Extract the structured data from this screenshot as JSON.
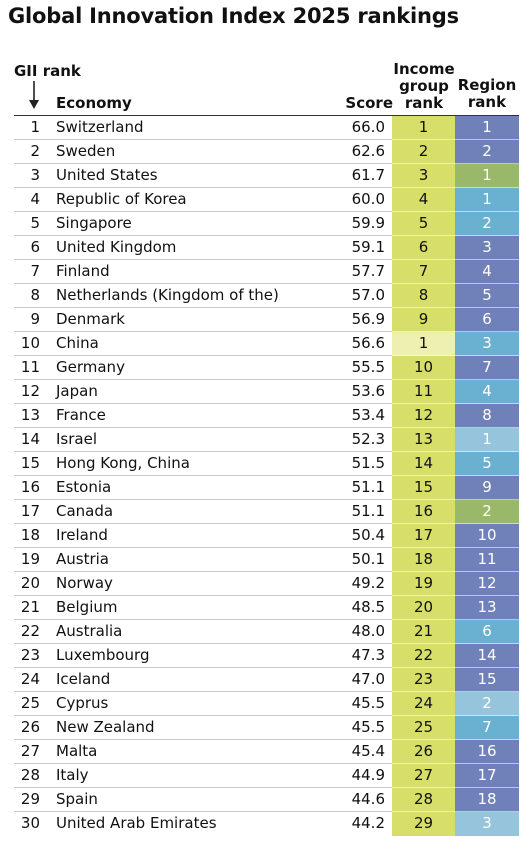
{
  "title": "Global Innovation Index 2025 rankings",
  "headers": {
    "gii_rank": "GII rank",
    "economy": "Economy",
    "score": "Score",
    "income_line1": "Income",
    "income_line2": "group",
    "income_line3": "rank",
    "region_line1": "Region",
    "region_line2": "rank"
  },
  "colors": {
    "income_high": "#d8de6a",
    "income_upper_middle": "#eef0b2",
    "region_europe": "#7080b8",
    "region_northern_america": "#9ab86a",
    "region_se_asia_oceania": "#6ab0d0",
    "region_north_africa_west_asia": "#96c4dc"
  },
  "rows": [
    {
      "rank": "1",
      "economy": "Switzerland",
      "score": "66.0",
      "income_rank": "1",
      "region_rank": "1",
      "income_group": "high",
      "region": "europe"
    },
    {
      "rank": "2",
      "economy": "Sweden",
      "score": "62.6",
      "income_rank": "2",
      "region_rank": "2",
      "income_group": "high",
      "region": "europe"
    },
    {
      "rank": "3",
      "economy": "United States",
      "score": "61.7",
      "income_rank": "3",
      "region_rank": "1",
      "income_group": "high",
      "region": "northern_america"
    },
    {
      "rank": "4",
      "economy": "Republic of Korea",
      "score": "60.0",
      "income_rank": "4",
      "region_rank": "1",
      "income_group": "high",
      "region": "se_asia_oceania"
    },
    {
      "rank": "5",
      "economy": "Singapore",
      "score": "59.9",
      "income_rank": "5",
      "region_rank": "2",
      "income_group": "high",
      "region": "se_asia_oceania"
    },
    {
      "rank": "6",
      "economy": "United Kingdom",
      "score": "59.1",
      "income_rank": "6",
      "region_rank": "3",
      "income_group": "high",
      "region": "europe"
    },
    {
      "rank": "7",
      "economy": "Finland",
      "score": "57.7",
      "income_rank": "7",
      "region_rank": "4",
      "income_group": "high",
      "region": "europe"
    },
    {
      "rank": "8",
      "economy": "Netherlands (Kingdom of the)",
      "score": "57.0",
      "income_rank": "8",
      "region_rank": "5",
      "income_group": "high",
      "region": "europe"
    },
    {
      "rank": "9",
      "economy": "Denmark",
      "score": "56.9",
      "income_rank": "9",
      "region_rank": "6",
      "income_group": "high",
      "region": "europe"
    },
    {
      "rank": "10",
      "economy": "China",
      "score": "56.6",
      "income_rank": "1",
      "region_rank": "3",
      "income_group": "upper_middle",
      "region": "se_asia_oceania"
    },
    {
      "rank": "11",
      "economy": "Germany",
      "score": "55.5",
      "income_rank": "10",
      "region_rank": "7",
      "income_group": "high",
      "region": "europe"
    },
    {
      "rank": "12",
      "economy": "Japan",
      "score": "53.6",
      "income_rank": "11",
      "region_rank": "4",
      "income_group": "high",
      "region": "se_asia_oceania"
    },
    {
      "rank": "13",
      "economy": "France",
      "score": "53.4",
      "income_rank": "12",
      "region_rank": "8",
      "income_group": "high",
      "region": "europe"
    },
    {
      "rank": "14",
      "economy": "Israel",
      "score": "52.3",
      "income_rank": "13",
      "region_rank": "1",
      "income_group": "high",
      "region": "north_africa_west_asia"
    },
    {
      "rank": "15",
      "economy": "Hong Kong, China",
      "score": "51.5",
      "income_rank": "14",
      "region_rank": "5",
      "income_group": "high",
      "region": "se_asia_oceania"
    },
    {
      "rank": "16",
      "economy": "Estonia",
      "score": "51.1",
      "income_rank": "15",
      "region_rank": "9",
      "income_group": "high",
      "region": "europe"
    },
    {
      "rank": "17",
      "economy": "Canada",
      "score": "51.1",
      "income_rank": "16",
      "region_rank": "2",
      "income_group": "high",
      "region": "northern_america"
    },
    {
      "rank": "18",
      "economy": "Ireland",
      "score": "50.4",
      "income_rank": "17",
      "region_rank": "10",
      "income_group": "high",
      "region": "europe"
    },
    {
      "rank": "19",
      "economy": "Austria",
      "score": "50.1",
      "income_rank": "18",
      "region_rank": "11",
      "income_group": "high",
      "region": "europe"
    },
    {
      "rank": "20",
      "economy": "Norway",
      "score": "49.2",
      "income_rank": "19",
      "region_rank": "12",
      "income_group": "high",
      "region": "europe"
    },
    {
      "rank": "21",
      "economy": "Belgium",
      "score": "48.5",
      "income_rank": "20",
      "region_rank": "13",
      "income_group": "high",
      "region": "europe"
    },
    {
      "rank": "22",
      "economy": "Australia",
      "score": "48.0",
      "income_rank": "21",
      "region_rank": "6",
      "income_group": "high",
      "region": "se_asia_oceania"
    },
    {
      "rank": "23",
      "economy": "Luxembourg",
      "score": "47.3",
      "income_rank": "22",
      "region_rank": "14",
      "income_group": "high",
      "region": "europe"
    },
    {
      "rank": "24",
      "economy": "Iceland",
      "score": "47.0",
      "income_rank": "23",
      "region_rank": "15",
      "income_group": "high",
      "region": "europe"
    },
    {
      "rank": "25",
      "economy": "Cyprus",
      "score": "45.5",
      "income_rank": "24",
      "region_rank": "2",
      "income_group": "high",
      "region": "north_africa_west_asia"
    },
    {
      "rank": "26",
      "economy": "New Zealand",
      "score": "45.5",
      "income_rank": "25",
      "region_rank": "7",
      "income_group": "high",
      "region": "se_asia_oceania"
    },
    {
      "rank": "27",
      "economy": "Malta",
      "score": "45.4",
      "income_rank": "26",
      "region_rank": "16",
      "income_group": "high",
      "region": "europe"
    },
    {
      "rank": "28",
      "economy": "Italy",
      "score": "44.9",
      "income_rank": "27",
      "region_rank": "17",
      "income_group": "high",
      "region": "europe"
    },
    {
      "rank": "29",
      "economy": "Spain",
      "score": "44.6",
      "income_rank": "28",
      "region_rank": "18",
      "income_group": "high",
      "region": "europe"
    },
    {
      "rank": "30",
      "economy": "United Arab Emirates",
      "score": "44.2",
      "income_rank": "29",
      "region_rank": "3",
      "income_group": "high",
      "region": "north_africa_west_asia"
    }
  ]
}
